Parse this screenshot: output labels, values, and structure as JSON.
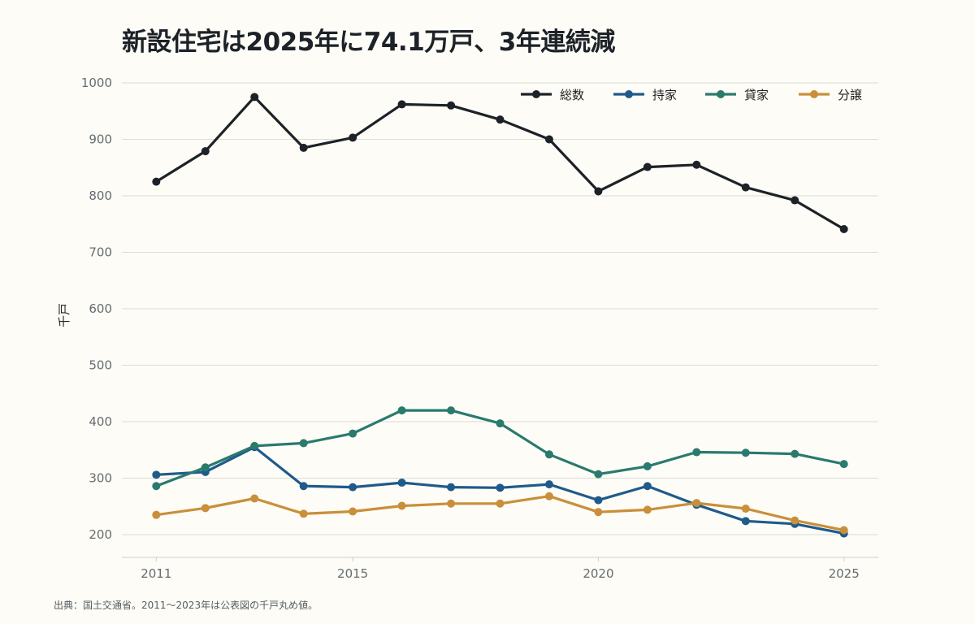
{
  "title": "新設住宅は2025年に74.1万戸、3年連続減",
  "source": "出典：国土交通省。2011〜2023年は公表図の千戸丸め値。",
  "chart_data": {
    "type": "line",
    "title": "新設住宅は2025年に74.1万戸、3年連続減",
    "ylabel": "千戸",
    "xlabel": "",
    "x": [
      2011,
      2012,
      2013,
      2014,
      2015,
      2016,
      2017,
      2018,
      2019,
      2020,
      2021,
      2022,
      2023,
      2024,
      2025
    ],
    "xticks": [
      2011,
      2015,
      2020,
      2025
    ],
    "yticks": [
      200,
      300,
      400,
      500,
      600,
      700,
      800,
      900,
      1000
    ],
    "xlim": [
      2010.3,
      2025.7
    ],
    "ylim": [
      160,
      1000
    ],
    "grid": true,
    "legend_position": "top-right",
    "series": [
      {
        "name": "総数",
        "color": "#1c2227",
        "values": [
          825,
          879,
          975,
          885,
          903,
          962,
          960,
          935,
          900,
          808,
          851,
          855,
          815,
          792,
          741
        ]
      },
      {
        "name": "持家",
        "color": "#1f5a8b",
        "values": [
          306,
          311,
          355,
          286,
          284,
          292,
          284,
          283,
          289,
          261,
          286,
          253,
          224,
          219,
          202
        ]
      },
      {
        "name": "貸家",
        "color": "#2a7a6e",
        "values": [
          286,
          319,
          357,
          362,
          379,
          420,
          420,
          397,
          342,
          307,
          321,
          346,
          345,
          343,
          325
        ]
      },
      {
        "name": "分譲",
        "color": "#c98f3a",
        "values": [
          235,
          247,
          264,
          237,
          241,
          251,
          255,
          255,
          268,
          240,
          244,
          256,
          246,
          225,
          208
        ]
      }
    ]
  }
}
